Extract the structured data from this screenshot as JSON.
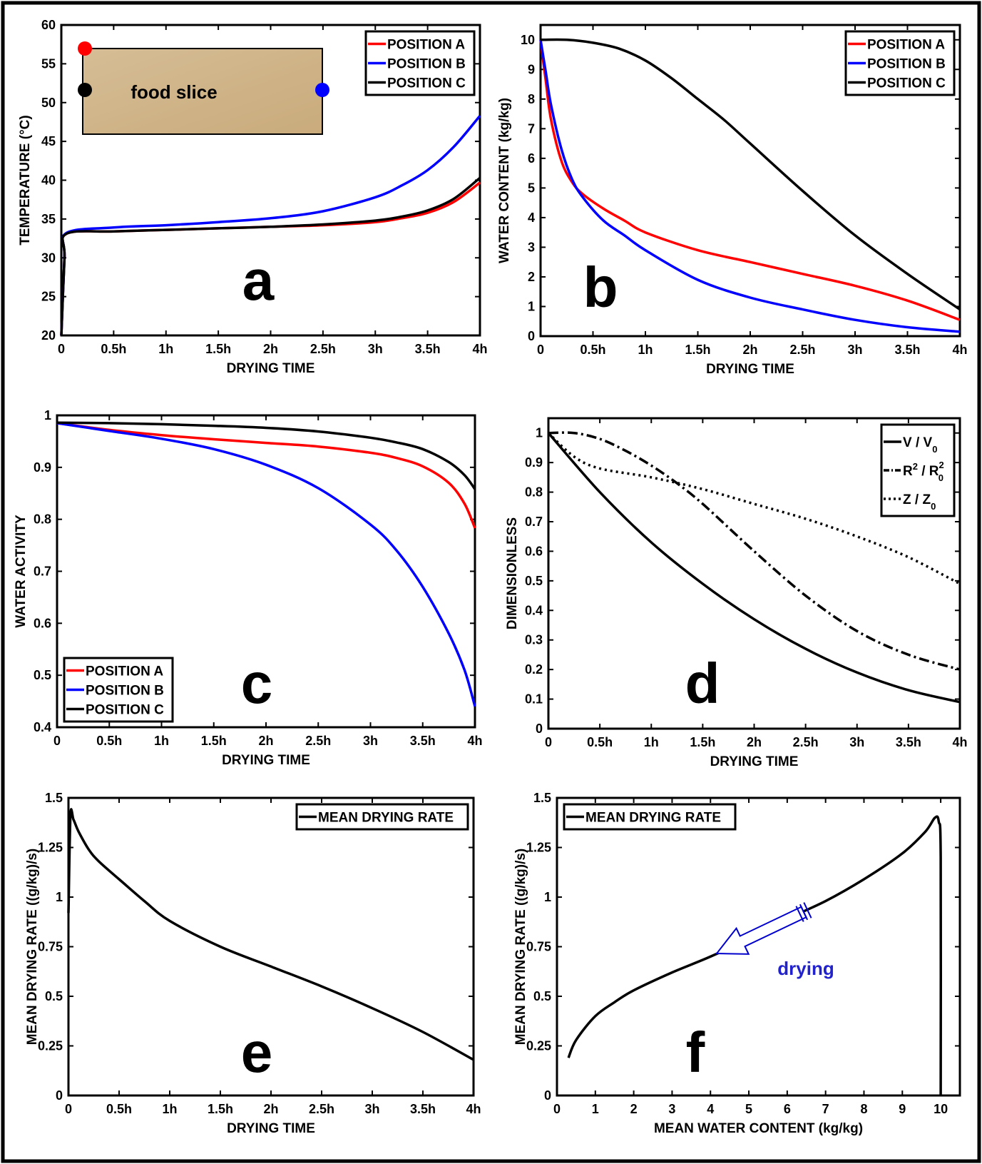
{
  "chart_data": [
    {
      "id": "a",
      "type": "line",
      "panel_letter": "a",
      "xlabel": "DRYING TIME",
      "ylabel": "TEMPERATURE (°C)",
      "xlim": [
        0,
        4
      ],
      "ylim": [
        20,
        60
      ],
      "x_ticks": [
        0,
        0.5,
        1,
        1.5,
        2,
        2.5,
        3,
        3.5,
        4
      ],
      "x_tick_labels": [
        "0",
        "0.5h",
        "1h",
        "1.5h",
        "2h",
        "2.5h",
        "3h",
        "3.5h",
        "4h"
      ],
      "y_ticks": [
        20,
        25,
        30,
        35,
        40,
        45,
        50,
        55,
        60
      ],
      "y_tick_labels": [
        "20",
        "25",
        "30",
        "35",
        "40",
        "45",
        "50",
        "55",
        "60"
      ],
      "legend_position": "top-right",
      "inset": {
        "label": "food slice",
        "markers": [
          "#ff0000",
          "#000000",
          "#0000ff"
        ]
      },
      "series": [
        {
          "name": "POSITION A",
          "color": "#ff0000",
          "x": [
            0,
            0.03,
            0.05,
            0.5,
            1,
            1.5,
            2,
            2.5,
            3,
            3.25,
            3.5,
            3.75,
            4
          ],
          "y": [
            20,
            30,
            33.1,
            33.4,
            33.6,
            33.8,
            34.0,
            34.2,
            34.6,
            35.1,
            35.8,
            37.2,
            39.7
          ]
        },
        {
          "name": "POSITION B",
          "color": "#0000ff",
          "x": [
            0,
            0.03,
            0.05,
            0.5,
            1,
            1.5,
            2,
            2.5,
            3,
            3.25,
            3.5,
            3.75,
            4
          ],
          "y": [
            20,
            30,
            33.2,
            33.9,
            34.2,
            34.6,
            35.1,
            36.0,
            37.8,
            39.3,
            41.3,
            44.3,
            48.3
          ]
        },
        {
          "name": "POSITION C",
          "color": "#000000",
          "x": [
            0,
            0.03,
            0.05,
            0.5,
            1,
            1.5,
            2,
            2.5,
            3,
            3.25,
            3.5,
            3.75,
            4
          ],
          "y": [
            20,
            30,
            33.1,
            33.4,
            33.6,
            33.8,
            34.0,
            34.3,
            34.8,
            35.3,
            36.1,
            37.6,
            40.3
          ]
        }
      ]
    },
    {
      "id": "b",
      "type": "line",
      "panel_letter": "b",
      "xlabel": "DRYING TIME",
      "ylabel": "WATER CONTENT (kg/kg)",
      "xlim": [
        0,
        4
      ],
      "ylim": [
        0,
        10.5
      ],
      "x_ticks": [
        0,
        0.5,
        1,
        1.5,
        2,
        2.5,
        3,
        3.5,
        4
      ],
      "x_tick_labels": [
        "0",
        "0.5h",
        "1h",
        "1.5h",
        "2h",
        "2.5h",
        "3h",
        "3.5h",
        "4h"
      ],
      "y_ticks": [
        0,
        1,
        2,
        3,
        4,
        5,
        6,
        7,
        8,
        9,
        10
      ],
      "y_tick_labels": [
        "0",
        "1",
        "2",
        "3",
        "4",
        "5",
        "6",
        "7",
        "8",
        "9",
        "10"
      ],
      "legend_position": "top-right",
      "series": [
        {
          "name": "POSITION A",
          "color": "#ff0000",
          "x": [
            0,
            0.05,
            0.1,
            0.2,
            0.3,
            0.4,
            0.6,
            0.8,
            1,
            1.5,
            2,
            2.5,
            3,
            3.5,
            4
          ],
          "y": [
            10,
            8.6,
            7.3,
            5.9,
            5.2,
            4.8,
            4.3,
            3.9,
            3.5,
            2.9,
            2.5,
            2.1,
            1.7,
            1.2,
            0.55
          ]
        },
        {
          "name": "POSITION B",
          "color": "#0000ff",
          "x": [
            0,
            0.05,
            0.1,
            0.2,
            0.3,
            0.4,
            0.6,
            0.8,
            1,
            1.5,
            2,
            2.5,
            3,
            3.5,
            4
          ],
          "y": [
            10,
            8.9,
            7.8,
            6.3,
            5.3,
            4.7,
            3.9,
            3.4,
            2.9,
            1.9,
            1.3,
            0.9,
            0.55,
            0.3,
            0.15
          ]
        },
        {
          "name": "POSITION C",
          "color": "#000000",
          "x": [
            0,
            0.25,
            0.5,
            0.75,
            1,
            1.25,
            1.5,
            1.75,
            2,
            2.5,
            3,
            3.5,
            4
          ],
          "y": [
            10,
            10,
            9.9,
            9.7,
            9.3,
            8.7,
            8.0,
            7.3,
            6.5,
            4.9,
            3.4,
            2.1,
            0.9
          ]
        }
      ]
    },
    {
      "id": "c",
      "type": "line",
      "panel_letter": "c",
      "xlabel": "DRYING TIME",
      "ylabel": "WATER ACTIVITY",
      "xlim": [
        0,
        4
      ],
      "ylim": [
        0.4,
        1
      ],
      "x_ticks": [
        0,
        0.5,
        1,
        1.5,
        2,
        2.5,
        3,
        3.5,
        4
      ],
      "x_tick_labels": [
        "0",
        "0.5h",
        "1h",
        "1.5h",
        "2h",
        "2.5h",
        "3h",
        "3.5h",
        "4h"
      ],
      "y_ticks": [
        0.4,
        0.5,
        0.6,
        0.7,
        0.8,
        0.9,
        1
      ],
      "y_tick_labels": [
        "0.4",
        "0.5",
        "0.6",
        "0.7",
        "0.8",
        "0.9",
        "1"
      ],
      "legend_position": "bottom-left",
      "series": [
        {
          "name": "POSITION A",
          "color": "#ff0000",
          "x": [
            0,
            0.5,
            1,
            1.5,
            2,
            2.5,
            3,
            3.25,
            3.5,
            3.75,
            3.9,
            4
          ],
          "y": [
            0.985,
            0.972,
            0.962,
            0.954,
            0.947,
            0.94,
            0.928,
            0.918,
            0.902,
            0.87,
            0.83,
            0.783
          ]
        },
        {
          "name": "POSITION B",
          "color": "#0000ff",
          "x": [
            0,
            0.5,
            1,
            1.5,
            2,
            2.5,
            3,
            3.25,
            3.5,
            3.75,
            3.9,
            4
          ],
          "y": [
            0.985,
            0.97,
            0.955,
            0.935,
            0.905,
            0.86,
            0.79,
            0.74,
            0.67,
            0.58,
            0.51,
            0.44
          ]
        },
        {
          "name": "POSITION C",
          "color": "#000000",
          "x": [
            0,
            0.5,
            1,
            1.5,
            2,
            2.5,
            3,
            3.25,
            3.5,
            3.75,
            3.9,
            4
          ],
          "y": [
            0.986,
            0.985,
            0.983,
            0.98,
            0.976,
            0.969,
            0.957,
            0.948,
            0.935,
            0.91,
            0.885,
            0.858
          ]
        }
      ]
    },
    {
      "id": "d",
      "type": "line",
      "panel_letter": "d",
      "xlabel": "DRYING TIME",
      "ylabel": "DIMENSIONLESS",
      "xlim": [
        0,
        4
      ],
      "ylim": [
        0,
        1.05
      ],
      "x_ticks": [
        0,
        0.5,
        1,
        1.5,
        2,
        2.5,
        3,
        3.5,
        4
      ],
      "x_tick_labels": [
        "0",
        "0.5h",
        "1h",
        "1.5h",
        "2h",
        "2.5h",
        "3h",
        "3.5h",
        "4h"
      ],
      "y_ticks": [
        0,
        0.1,
        0.2,
        0.3,
        0.4,
        0.5,
        0.6,
        0.7,
        0.8,
        0.9,
        1
      ],
      "y_tick_labels": [
        "0",
        "0.1",
        "0.2",
        "0.3",
        "0.4",
        "0.5",
        "0.6",
        "0.7",
        "0.8",
        "0.9",
        "1"
      ],
      "legend_position": "top-right",
      "series": [
        {
          "name": "V / V0",
          "label_main": "V / V",
          "sub1": "0",
          "color": "#000000",
          "dash": "",
          "x": [
            0,
            0.5,
            1,
            1.5,
            2,
            2.5,
            3,
            3.5,
            4
          ],
          "y": [
            1.0,
            0.8,
            0.63,
            0.49,
            0.37,
            0.27,
            0.19,
            0.13,
            0.09
          ]
        },
        {
          "name": "R2 / R02",
          "label_main": "R",
          "sup1": "2",
          "label_mid": " / R",
          "sup2": "2",
          "sub2": "0",
          "color": "#000000",
          "dash": "14,5,3,5",
          "x": [
            0,
            0.25,
            0.5,
            0.75,
            1,
            1.25,
            1.5,
            2,
            2.5,
            3,
            3.5,
            4
          ],
          "y": [
            1.0,
            1.0,
            0.98,
            0.94,
            0.89,
            0.83,
            0.76,
            0.6,
            0.45,
            0.33,
            0.25,
            0.2
          ]
        },
        {
          "name": "Z / Z0",
          "label_main": "Z / Z",
          "sub1": "0",
          "color": "#000000",
          "dash": "3,5",
          "x": [
            0,
            0.25,
            0.5,
            1,
            1.5,
            2,
            2.5,
            3,
            3.5,
            4
          ],
          "y": [
            1.0,
            0.92,
            0.88,
            0.85,
            0.81,
            0.76,
            0.71,
            0.65,
            0.58,
            0.49
          ]
        }
      ]
    },
    {
      "id": "e",
      "type": "line",
      "panel_letter": "e",
      "xlabel": "DRYING TIME",
      "ylabel": "MEAN DRYING RATE ((g/kg)/s)",
      "xlim": [
        0,
        4
      ],
      "ylim": [
        0,
        1.5
      ],
      "x_ticks": [
        0,
        0.5,
        1,
        1.5,
        2,
        2.5,
        3,
        3.5,
        4
      ],
      "x_tick_labels": [
        "0",
        "0.5h",
        "1h",
        "1.5h",
        "2h",
        "2.5h",
        "3h",
        "3.5h",
        "4h"
      ],
      "y_ticks": [
        0,
        0.25,
        0.5,
        0.75,
        1,
        1.25,
        1.5
      ],
      "y_tick_labels": [
        "0",
        "0.25",
        "0.5",
        "0.75",
        "1",
        "1.25",
        "1.5"
      ],
      "legend_position": "top-right",
      "series": [
        {
          "name": "MEAN DRYING RATE",
          "color": "#000000",
          "x": [
            0,
            0.02,
            0.05,
            0.1,
            0.2,
            0.3,
            0.5,
            0.75,
            1,
            1.5,
            2,
            2.5,
            3,
            3.5,
            4
          ],
          "y": [
            0.92,
            1.41,
            1.39,
            1.33,
            1.24,
            1.18,
            1.09,
            0.98,
            0.88,
            0.75,
            0.65,
            0.55,
            0.44,
            0.32,
            0.18
          ]
        }
      ]
    },
    {
      "id": "f",
      "type": "line",
      "panel_letter": "f",
      "xlabel": "MEAN WATER CONTENT (kg/kg)",
      "ylabel": "MEAN DRYING RATE ((g/kg)/s)",
      "xlim": [
        0,
        10.5
      ],
      "ylim": [
        0,
        1.5
      ],
      "x_ticks": [
        0,
        1,
        2,
        3,
        4,
        5,
        6,
        7,
        8,
        9,
        10
      ],
      "x_tick_labels": [
        "0",
        "1",
        "2",
        "3",
        "4",
        "5",
        "6",
        "7",
        "8",
        "9",
        "10"
      ],
      "y_ticks": [
        0,
        0.25,
        0.5,
        0.75,
        1,
        1.25,
        1.5
      ],
      "y_tick_labels": [
        "0",
        "0.25",
        "0.5",
        "0.75",
        "1",
        "1.25",
        "1.5"
      ],
      "legend_position": "top-left",
      "annotation": "drying",
      "series": [
        {
          "name": "MEAN DRYING RATE",
          "color": "#000000",
          "x": [
            0.3,
            0.5,
            1,
            1.5,
            2,
            3,
            4,
            5,
            6,
            7,
            8,
            9,
            9.6,
            9.85,
            9.95,
            10,
            10
          ],
          "y": [
            0.19,
            0.28,
            0.4,
            0.47,
            0.53,
            0.62,
            0.7,
            0.79,
            0.89,
            0.98,
            1.09,
            1.22,
            1.33,
            1.4,
            1.38,
            1.2,
            0
          ]
        }
      ]
    }
  ]
}
